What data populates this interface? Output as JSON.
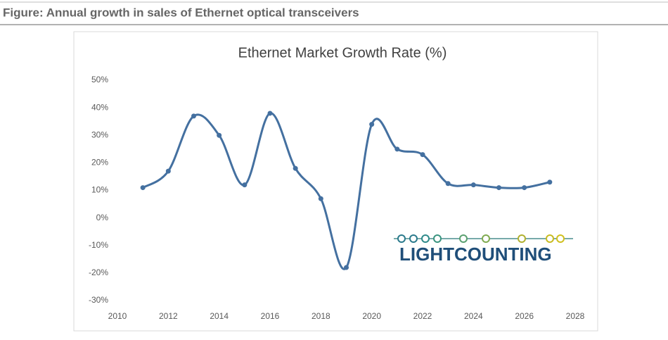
{
  "chart_data": {
    "type": "line",
    "caption": "Figure: Annual growth in sales of Ethernet optical transceivers",
    "title": "Ethernet Market Growth Rate (%)",
    "watermark": "LIGHTCOUNTING",
    "x": [
      2011,
      2012,
      2013,
      2014,
      2015,
      2016,
      2017,
      2018,
      2019,
      2020,
      2021,
      2022,
      2023,
      2024,
      2025,
      2026,
      2027
    ],
    "series": [
      {
        "name": "Ethernet",
        "color": "#4470a0",
        "values": [
          11,
          17,
          37,
          30,
          12,
          38,
          18,
          7,
          -18,
          34,
          25,
          23,
          12.5,
          12,
          11,
          11,
          13
        ]
      }
    ],
    "xlim": [
      2010,
      2028
    ],
    "xticks": [
      2010,
      2012,
      2014,
      2016,
      2018,
      2020,
      2022,
      2024,
      2026,
      2028
    ],
    "ylim": [
      -30,
      50
    ],
    "yticks": [
      {
        "value": -30,
        "label": "-30%"
      },
      {
        "value": -20,
        "label": "-20%"
      },
      {
        "value": -10,
        "label": "-10%"
      },
      {
        "value": 0,
        "label": "0%"
      },
      {
        "value": 10,
        "label": "10%"
      },
      {
        "value": 20,
        "label": "20%"
      },
      {
        "value": 30,
        "label": "30%"
      },
      {
        "value": 40,
        "label": "40%"
      },
      {
        "value": 50,
        "label": "50%"
      }
    ],
    "grid": false
  }
}
